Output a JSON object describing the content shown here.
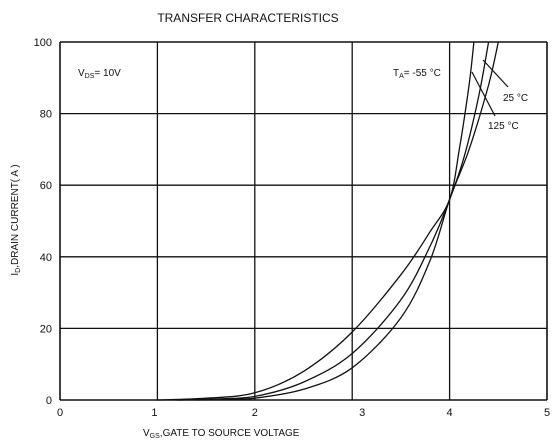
{
  "chart_data": {
    "type": "line",
    "title": "TRANSFER CHARACTERISTICS",
    "xlabel_sub": "GS",
    "xlabel_rest": ",GATE TO SOURCE VOLTAGE",
    "ylabel_sub": "D",
    "ylabel_rest": ",DRAIN CURRENT( A )",
    "xlim": [
      0,
      5
    ],
    "ylim": [
      0,
      100
    ],
    "xticks": [
      "0",
      "1",
      "2",
      "3",
      "4",
      "5"
    ],
    "yticks": [
      "0",
      "20",
      "40",
      "60",
      "80",
      "100"
    ],
    "grid": true,
    "conditions": {
      "vds_sub": "DS",
      "vds_rest": "= 10V",
      "ta_sub": "A",
      "ta_rest": "= -55 °C"
    },
    "series": [
      {
        "name": "-55 °C",
        "x": [
          1.0,
          1.5,
          2.0,
          2.5,
          3.0,
          3.5,
          3.8,
          4.0,
          4.1,
          4.2,
          4.25
        ],
        "y": [
          0.0,
          0.5,
          2.0,
          8.0,
          19.0,
          35.0,
          47.0,
          56.0,
          70.0,
          88.0,
          100.0
        ]
      },
      {
        "name": "25 °C",
        "x": [
          1.2,
          1.6,
          2.0,
          2.5,
          3.0,
          3.5,
          3.8,
          4.0,
          4.15,
          4.3,
          4.4
        ],
        "y": [
          0.0,
          0.3,
          1.0,
          5.0,
          13.0,
          28.0,
          43.0,
          56.0,
          68.0,
          85.0,
          100.0
        ]
      },
      {
        "name": "125 °C",
        "x": [
          1.4,
          1.7,
          2.0,
          2.5,
          3.0,
          3.5,
          3.8,
          4.0,
          4.2,
          4.4,
          4.5
        ],
        "y": [
          0.0,
          0.2,
          0.5,
          3.0,
          9.0,
          23.0,
          39.0,
          56.0,
          70.0,
          88.0,
          100.0
        ]
      }
    ],
    "labels": {
      "s25": "25 °C",
      "s125": "125 °C"
    }
  }
}
